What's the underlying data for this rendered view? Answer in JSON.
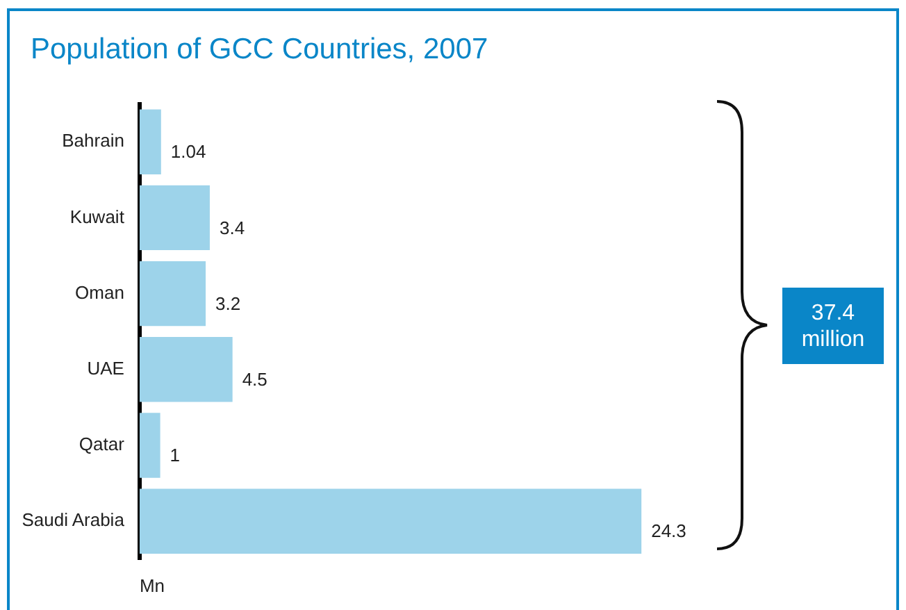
{
  "chart_data": {
    "type": "bar",
    "orientation": "horizontal",
    "title": "Population of GCC Countries, 2007",
    "xlabel": "Mn",
    "categories": [
      "Bahrain",
      "Kuwait",
      "Oman",
      "UAE",
      "Qatar",
      "Saudi Arabia"
    ],
    "values": [
      1.04,
      3.4,
      3.2,
      4.5,
      1,
      24.3
    ],
    "color": "#9dd3ea",
    "data_labels": true,
    "legend": false,
    "grid": false,
    "annotations": [
      "37.4\nmillion"
    ]
  }
}
